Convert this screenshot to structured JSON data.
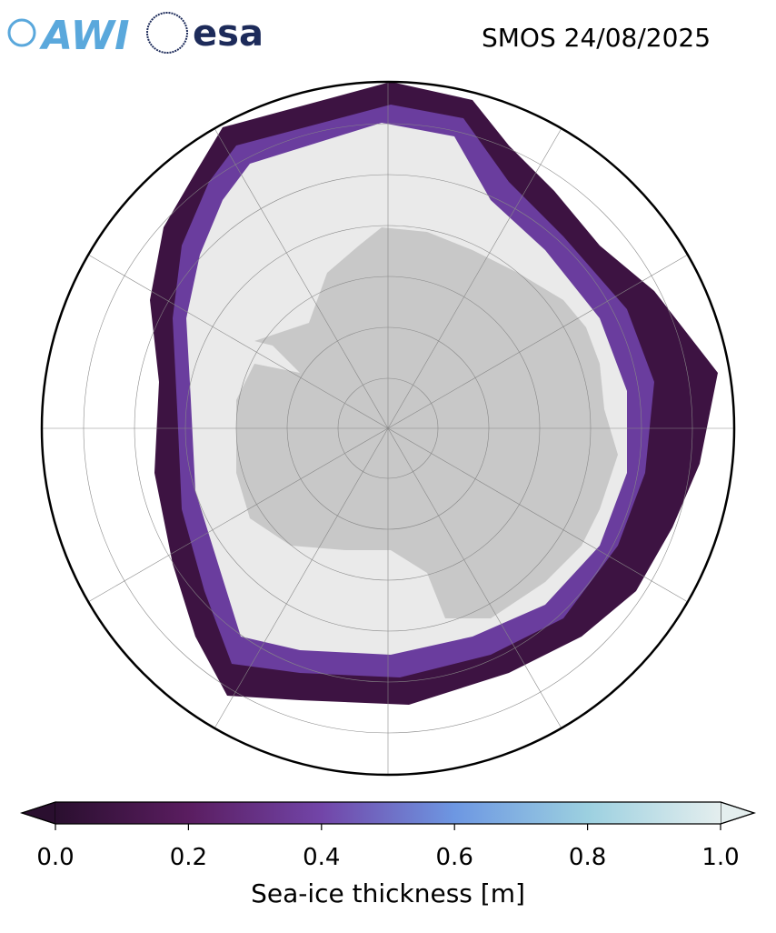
{
  "title": "SMOS 24/08/2025",
  "logos": [
    "AWI",
    "esa"
  ],
  "colorbar": {
    "label": "Sea-ice thickness [m]",
    "lim": [
      0,
      1
    ],
    "ticks": [
      {
        "value": 0,
        "label": "0.0"
      },
      {
        "value": 0.2,
        "label": "0.2"
      },
      {
        "value": 0.4,
        "label": "0.4"
      },
      {
        "value": 0.6,
        "label": "0.6"
      },
      {
        "value": 0.8,
        "label": "0.8"
      },
      {
        "value": 1,
        "label": "1.0"
      }
    ],
    "colors": [
      "#2a0f2f",
      "#5a1d60",
      "#7245a8",
      "#6d97e2",
      "#9cd0e0",
      "#e4eeee"
    ]
  }
}
